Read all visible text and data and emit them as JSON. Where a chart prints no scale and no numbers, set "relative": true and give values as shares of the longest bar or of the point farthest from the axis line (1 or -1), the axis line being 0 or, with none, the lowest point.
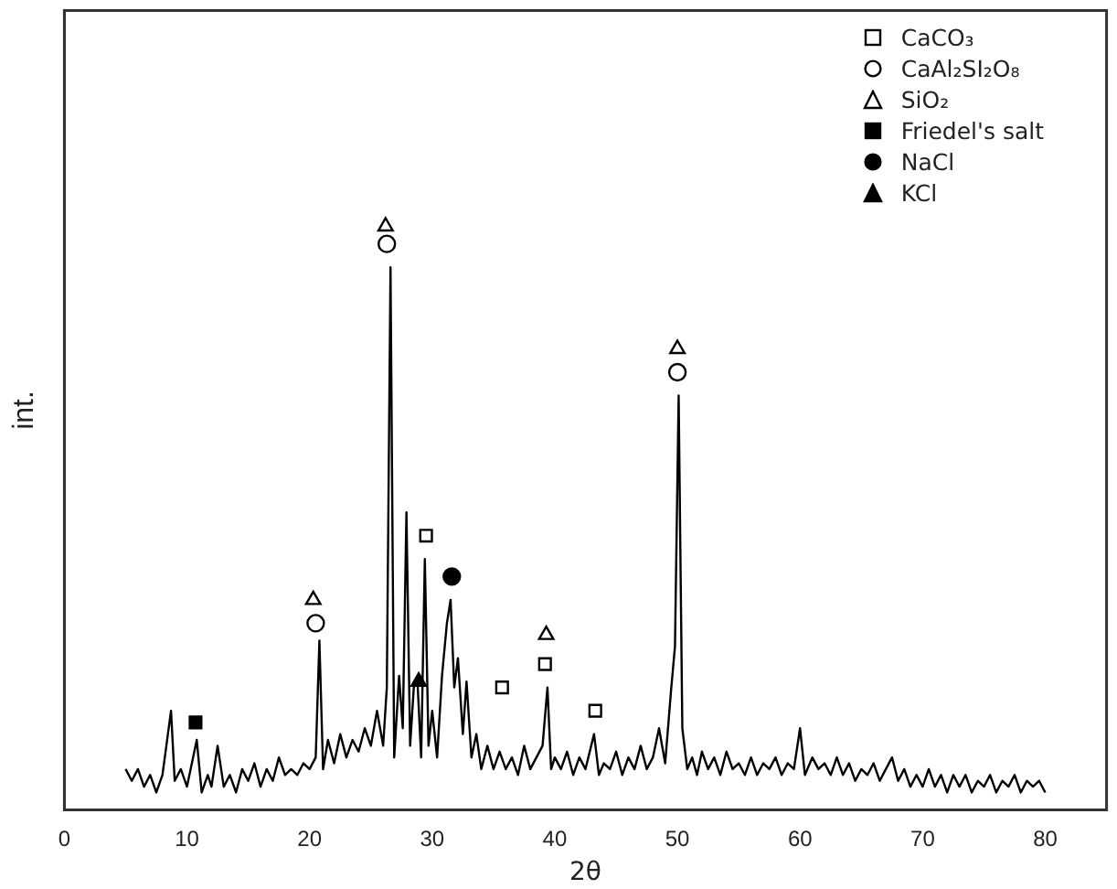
{
  "chart_data": {
    "type": "line",
    "xlabel": "2θ",
    "ylabel": "int.",
    "relative": true,
    "xlim": [
      0,
      85
    ],
    "xticks": [
      0,
      10,
      20,
      30,
      40,
      50,
      60,
      70,
      80
    ],
    "legend": "top right",
    "grid": false,
    "line_style": "solid",
    "series": [
      {
        "color": "#000000",
        "marker": "none",
        "x": [
          5,
          5.5,
          6,
          6.5,
          7,
          7.5,
          8,
          8.7,
          9,
          9.5,
          10,
          10.8,
          11.2,
          11.7,
          12,
          12.5,
          13,
          13.5,
          14,
          14.5,
          15,
          15.5,
          16,
          16.5,
          17,
          17.5,
          18,
          18.5,
          19,
          19.5,
          20,
          20.5,
          20.8,
          21.1,
          21.5,
          22,
          22.5,
          23,
          23.5,
          24,
          24.5,
          25,
          25.5,
          26,
          26.3,
          26.6,
          26.9,
          27.3,
          27.6,
          27.9,
          28.2,
          28.5,
          28.8,
          29.1,
          29.4,
          29.7,
          30,
          30.4,
          30.8,
          31.2,
          31.5,
          31.8,
          32.1,
          32.5,
          32.8,
          33.2,
          33.6,
          34,
          34.5,
          35,
          35.5,
          36,
          36.5,
          37,
          37.5,
          38,
          38.5,
          39,
          39.4,
          39.7,
          40,
          40.5,
          41,
          41.5,
          42,
          42.5,
          43.2,
          43.6,
          44,
          44.5,
          45,
          45.5,
          46,
          46.5,
          47,
          47.5,
          48,
          48.5,
          49,
          49.5,
          49.8,
          50.1,
          50.4,
          50.8,
          51.2,
          51.6,
          52,
          52.5,
          53,
          53.5,
          54,
          54.5,
          55,
          55.5,
          56,
          56.5,
          57,
          57.5,
          58,
          58.5,
          59,
          59.5,
          60,
          60.4,
          61,
          61.5,
          62,
          62.5,
          63,
          63.5,
          64,
          64.5,
          65,
          65.5,
          66,
          66.5,
          67,
          67.5,
          68,
          68.5,
          69,
          69.5,
          70,
          70.5,
          71,
          71.5,
          72,
          72.5,
          73,
          73.5,
          74,
          74.5,
          75,
          75.5,
          76,
          76.5,
          77,
          77.5,
          78,
          78.5,
          79,
          79.5,
          80
        ],
        "values": [
          0.07,
          0.05,
          0.07,
          0.04,
          0.06,
          0.03,
          0.06,
          0.17,
          0.05,
          0.07,
          0.04,
          0.12,
          0.03,
          0.06,
          0.04,
          0.11,
          0.04,
          0.06,
          0.03,
          0.07,
          0.05,
          0.08,
          0.04,
          0.07,
          0.05,
          0.09,
          0.06,
          0.07,
          0.06,
          0.08,
          0.07,
          0.09,
          0.29,
          0.07,
          0.12,
          0.08,
          0.13,
          0.09,
          0.12,
          0.1,
          0.14,
          0.11,
          0.17,
          0.11,
          0.21,
          0.93,
          0.09,
          0.23,
          0.14,
          0.51,
          0.11,
          0.21,
          0.22,
          0.09,
          0.43,
          0.11,
          0.17,
          0.09,
          0.23,
          0.32,
          0.36,
          0.21,
          0.26,
          0.13,
          0.22,
          0.09,
          0.13,
          0.07,
          0.11,
          0.07,
          0.1,
          0.07,
          0.09,
          0.06,
          0.11,
          0.07,
          0.09,
          0.11,
          0.21,
          0.07,
          0.09,
          0.07,
          0.1,
          0.06,
          0.09,
          0.07,
          0.13,
          0.06,
          0.08,
          0.07,
          0.1,
          0.06,
          0.09,
          0.07,
          0.11,
          0.07,
          0.09,
          0.14,
          0.08,
          0.21,
          0.28,
          0.71,
          0.14,
          0.07,
          0.09,
          0.06,
          0.1,
          0.07,
          0.09,
          0.06,
          0.1,
          0.07,
          0.08,
          0.06,
          0.09,
          0.06,
          0.08,
          0.07,
          0.09,
          0.06,
          0.08,
          0.07,
          0.14,
          0.06,
          0.09,
          0.07,
          0.08,
          0.06,
          0.09,
          0.06,
          0.08,
          0.05,
          0.07,
          0.06,
          0.08,
          0.05,
          0.07,
          0.09,
          0.05,
          0.07,
          0.04,
          0.06,
          0.04,
          0.07,
          0.04,
          0.06,
          0.03,
          0.06,
          0.04,
          0.06,
          0.03,
          0.05,
          0.04,
          0.06,
          0.03,
          0.05,
          0.04,
          0.06,
          0.03,
          0.05,
          0.04,
          0.05,
          0.03
        ]
      },
      {
        "type": "scatter",
        "name": "CaCO₃",
        "color": "#ffffff",
        "marker": "square",
        "x": [
          29.5,
          35.7,
          39.2,
          43.3
        ],
        "values": [
          0.47,
          0.21,
          0.25,
          0.17
        ]
      },
      {
        "type": "scatter",
        "name": "CaAl₂SI₂O₈",
        "color": "#ffffff",
        "marker": "circle",
        "x": [
          26.3,
          20.5,
          50.0
        ],
        "values": [
          0.97,
          0.32,
          0.75
        ]
      },
      {
        "type": "scatter",
        "name": "SiO₂",
        "color": "#ffffff",
        "marker": "triangle",
        "x": [
          26.2,
          20.3,
          50.0,
          39.3
        ],
        "values": [
          1.0,
          0.36,
          0.79,
          0.3
        ]
      },
      {
        "type": "scatter",
        "name": "Friedel's salt",
        "color": "#000000",
        "marker": "square",
        "x": [
          10.7
        ],
        "values": [
          0.15
        ]
      },
      {
        "type": "scatter",
        "name": "NaCl",
        "color": "#000000",
        "marker": "circle",
        "x": [
          31.6
        ],
        "values": [
          0.4
        ]
      },
      {
        "type": "scatter",
        "name": "KCl",
        "color": "#000000",
        "marker": "triangle",
        "x": [
          28.9
        ],
        "values": [
          0.22
        ]
      }
    ]
  }
}
